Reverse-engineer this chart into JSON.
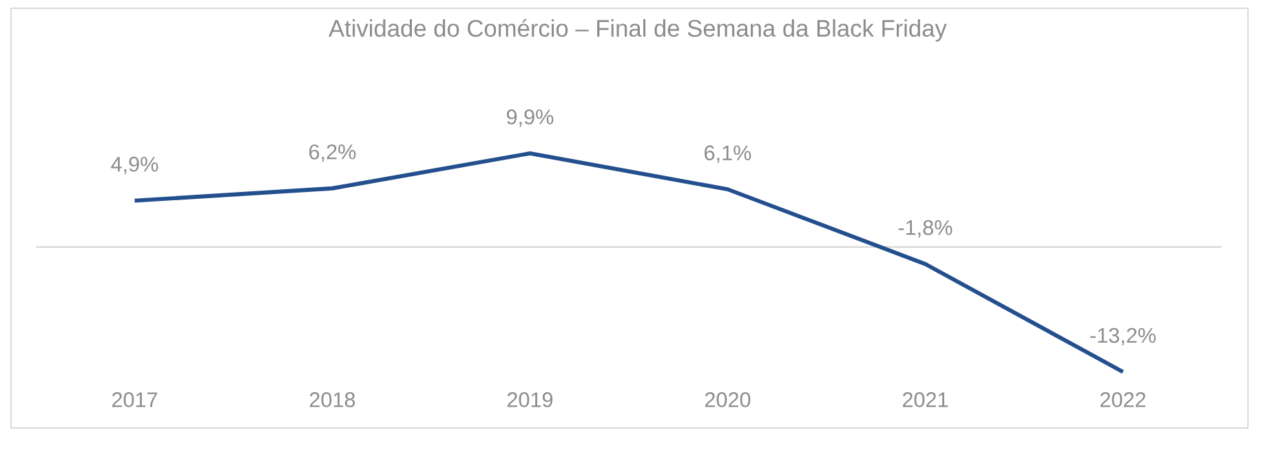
{
  "chart_data": {
    "type": "line",
    "title": "Atividade do Comércio – Final de Semana da Black Friday",
    "categories": [
      "2017",
      "2018",
      "2019",
      "2020",
      "2021",
      "2022"
    ],
    "series": [
      {
        "color": "#244f8e",
        "values": [
          4.9,
          6.2,
          9.9,
          6.1,
          -1.8,
          -13.2
        ],
        "value_labels": [
          "4,9%",
          "6,2%",
          "9,9%",
          "6,1%",
          "-1,8%",
          "-13,2%"
        ]
      }
    ],
    "ref_lines": [
      {
        "axis": "y",
        "value": 0,
        "color": "#d9d9d9"
      }
    ],
    "tick_labels": "x",
    "grid": false,
    "marker": "none",
    "line_style": "solid"
  }
}
